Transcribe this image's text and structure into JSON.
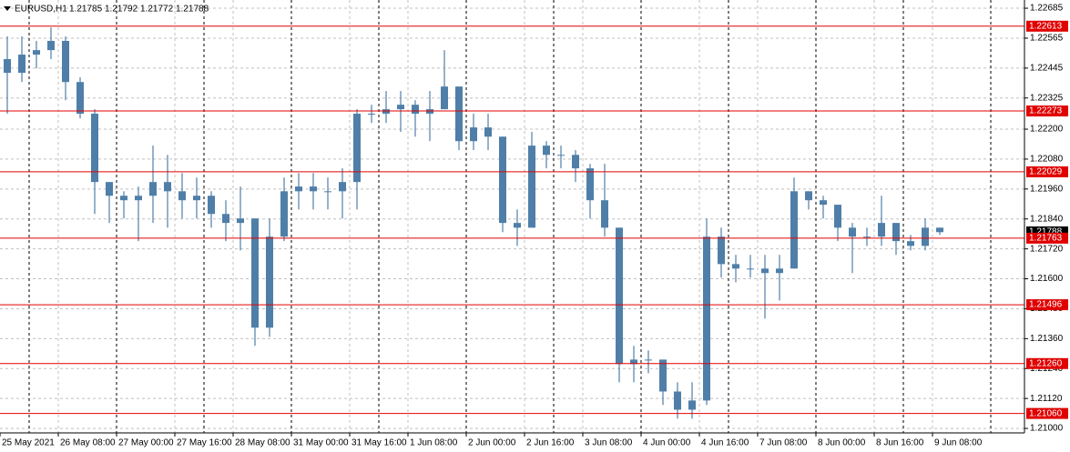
{
  "chart_data": {
    "type": "candlestick",
    "header": {
      "symbol": "EURUSD,H1",
      "open": 1.21785,
      "high": 1.21792,
      "low": 1.21772,
      "close": 1.21788
    },
    "categories": [
      "25 May 2021",
      null,
      null,
      null,
      "26 May 08:00",
      null,
      null,
      null,
      "27 May 00:00",
      null,
      null,
      null,
      "27 May 16:00",
      null,
      null,
      null,
      "28 May 08:00",
      null,
      null,
      null,
      "31 May 00:00",
      null,
      null,
      null,
      "31 May 16:00",
      null,
      null,
      null,
      "1 Jun 08:00",
      null,
      null,
      null,
      "2 Jun 00:00",
      null,
      null,
      null,
      "2 Jun 16:00",
      null,
      null,
      null,
      "3 Jun 08:00",
      null,
      null,
      null,
      "4 Jun 00:00",
      null,
      null,
      null,
      "4 Jun 16:00",
      null,
      null,
      null,
      "7 Jun 08:00",
      null,
      null,
      null,
      "8 Jun 00:00",
      null,
      null,
      null,
      "8 Jun 16:00",
      null,
      null,
      null,
      "9 Jun 08:00"
    ],
    "open": [
      1.22481,
      1.22426,
      1.22499,
      1.22517,
      1.22554,
      1.22389,
      1.22262,
      1.21988,
      1.21933,
      1.21915,
      1.21933,
      1.21988,
      1.21951,
      1.21915,
      1.21933,
      1.2186,
      1.21824,
      1.21842,
      1.21404,
      1.21769,
      1.21951,
      1.2197,
      1.21951,
      1.21951,
      1.21988,
      1.22262,
      1.22262,
      1.2228,
      1.22298,
      1.22262,
      1.2228,
      1.22371,
      1.22152,
      1.22207,
      1.2217,
      1.21824,
      1.21805,
      1.22134,
      1.22097,
      1.22097,
      1.22043,
      1.21915,
      1.21805,
      1.21258,
      1.21276,
      1.21276,
      1.21148,
      1.21075,
      1.21112,
      1.21769,
      1.21659,
      1.21641,
      1.21641,
      1.21623,
      1.21641,
      1.21951,
      1.21915,
      1.21897,
      1.21805,
      1.21769,
      1.21769,
      1.21824,
      1.21751,
      1.21732,
      1.21805
    ],
    "high": [
      1.22572,
      1.22572,
      1.22554,
      1.22608,
      1.22572,
      1.22408,
      1.2228,
      1.21988,
      1.21951,
      1.2197,
      1.22134,
      1.22097,
      1.22024,
      1.22006,
      1.21951,
      1.21915,
      1.2197,
      1.21842,
      1.21842,
      1.22006,
      1.22024,
      1.22024,
      1.22006,
      1.22043,
      1.2228,
      1.22298,
      1.22353,
      1.22353,
      1.22316,
      1.22353,
      1.22517,
      1.22371,
      1.22262,
      1.22262,
      1.2217,
      1.21878,
      1.22189,
      1.22152,
      1.22134,
      1.22116,
      1.22061,
      1.22061,
      1.21805,
      1.21331,
      1.21313,
      1.21276,
      1.21185,
      1.21185,
      1.21842,
      1.21805,
      1.21696,
      1.21696,
      1.21696,
      1.21696,
      1.22006,
      1.21951,
      1.21933,
      1.21897,
      1.21824,
      1.21805,
      1.21933,
      1.21824,
      1.21776,
      1.21842,
      1.21805
    ],
    "low": [
      1.22262,
      1.22389,
      1.22444,
      1.22481,
      1.22316,
      1.22243,
      1.2186,
      1.21824,
      1.21842,
      1.21751,
      1.21824,
      1.21805,
      1.21842,
      1.21842,
      1.21805,
      1.21751,
      1.21714,
      1.21331,
      1.21367,
      1.21751,
      1.21878,
      1.21878,
      1.21878,
      1.21842,
      1.21878,
      1.22225,
      1.22225,
      1.22189,
      1.2217,
      1.22152,
      1.2228,
      1.22116,
      1.22116,
      1.22116,
      1.21787,
      1.21732,
      1.21805,
      1.22043,
      1.22043,
      1.21988,
      1.21842,
      1.21769,
      1.21185,
      1.21185,
      1.21221,
      1.21094,
      1.21039,
      1.21039,
      1.21094,
      1.21605,
      1.21586,
      1.21605,
      1.2144,
      1.21513,
      1.21641,
      1.21878,
      1.21842,
      1.21751,
      1.21623,
      1.21732,
      1.21732,
      1.21696,
      1.21714,
      1.21714,
      1.21776
    ],
    "close": [
      1.22426,
      1.22499,
      1.22517,
      1.22554,
      1.22389,
      1.22262,
      1.21988,
      1.21933,
      1.21915,
      1.21933,
      1.21988,
      1.21951,
      1.21915,
      1.21933,
      1.2186,
      1.21824,
      1.21842,
      1.21404,
      1.21769,
      1.21951,
      1.2197,
      1.21951,
      1.21951,
      1.21988,
      1.22262,
      1.22262,
      1.2228,
      1.22298,
      1.22262,
      1.2228,
      1.22371,
      1.22152,
      1.22207,
      1.2217,
      1.21824,
      1.21805,
      1.22134,
      1.22097,
      1.22097,
      1.22043,
      1.21915,
      1.21805,
      1.21258,
      1.21276,
      1.21276,
      1.21148,
      1.21075,
      1.21112,
      1.21769,
      1.21659,
      1.21641,
      1.21641,
      1.21623,
      1.21641,
      1.21951,
      1.21915,
      1.21897,
      1.21805,
      1.21769,
      1.21769,
      1.21824,
      1.21751,
      1.21732,
      1.21805,
      1.21787
    ],
    "color": "#4f7fa8",
    "ylim": [
      1.20982,
      1.22718
    ],
    "yticks": [
      1.22685,
      1.22565,
      1.22445,
      1.22325,
      {
        "value": 1.222,
        "label": "1.22200"
      },
      {
        "value": 1.2208,
        "label": "1.22080"
      },
      {
        "value": 1.2196,
        "label": "1.21960"
      },
      {
        "value": 1.2184,
        "label": "1.21840"
      },
      {
        "value": 1.2172,
        "label": "1.21720"
      },
      {
        "value": 1.216,
        "label": "1.21600"
      },
      {
        "value": 1.2148,
        "label": "1.21480"
      },
      {
        "value": 1.2136,
        "label": "1.21360"
      },
      {
        "value": 1.2124,
        "label": "1.21240"
      },
      {
        "value": 1.2112,
        "label": "1.21120"
      },
      {
        "value": 1.21,
        "label": "1.21000"
      }
    ],
    "bid": 1.21788,
    "levels": [
      1.22613,
      1.22273,
      1.22029,
      1.21763,
      1.21496,
      {
        "value": 1.2126,
        "label": "1.21260"
      },
      {
        "value": 1.2106,
        "label": "1.21060"
      }
    ],
    "level_color": "#e00000",
    "grid": true,
    "period_separators": true
  }
}
